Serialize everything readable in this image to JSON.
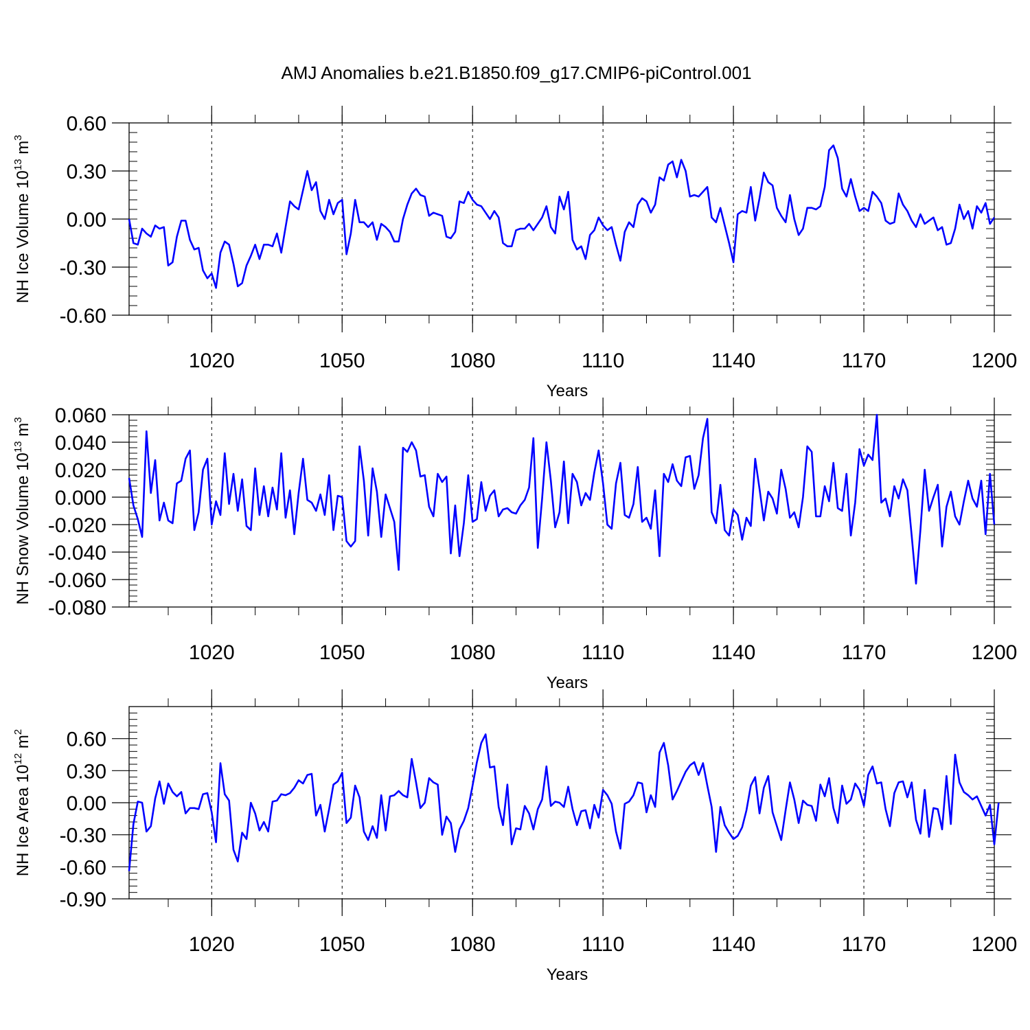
{
  "title": "AMJ Anomalies b.e21.B1850.f09_g17.CMIP6-piControl.001",
  "colors": {
    "line": "#0000ff",
    "axis": "#000000",
    "grid": "#000000"
  },
  "chart_data": [
    {
      "type": "line",
      "name": "ice-volume",
      "ylabel_main": "NH Ice Volume 10",
      "ylabel_exp": "13",
      "ylabel_unit_base": " m",
      "ylabel_unit_exp": "3",
      "xlabel": "Years",
      "xlim": [
        1001,
        1200
      ],
      "ylim": [
        -0.6,
        0.6
      ],
      "xticks": [
        1020,
        1050,
        1080,
        1110,
        1140,
        1170,
        1200
      ],
      "xtick_labels": [
        "1020",
        "1050",
        "1080",
        "1110",
        "1140",
        "1170",
        "1200"
      ],
      "yticks": [
        -0.6,
        -0.3,
        0.0,
        0.3,
        0.6
      ],
      "ytick_labels": [
        "-0.60",
        "-0.30",
        "0.00",
        "0.30",
        "0.60"
      ],
      "grid_x": [
        1020,
        1050,
        1080,
        1110,
        1140,
        1170
      ],
      "x_start": 1001,
      "values": [
        0.0,
        -0.15,
        -0.16,
        -0.06,
        -0.09,
        -0.11,
        -0.04,
        -0.06,
        -0.05,
        -0.29,
        -0.27,
        -0.11,
        -0.01,
        -0.01,
        -0.13,
        -0.19,
        -0.18,
        -0.32,
        -0.37,
        -0.34,
        -0.43,
        -0.21,
        -0.14,
        -0.16,
        -0.28,
        -0.42,
        -0.4,
        -0.29,
        -0.23,
        -0.16,
        -0.25,
        -0.16,
        -0.16,
        -0.17,
        -0.09,
        -0.21,
        -0.05,
        0.11,
        0.08,
        0.06,
        0.18,
        0.3,
        0.18,
        0.23,
        0.05,
        0.0,
        0.12,
        0.03,
        0.1,
        0.12,
        -0.22,
        -0.09,
        0.12,
        -0.02,
        -0.02,
        -0.05,
        -0.02,
        -0.13,
        -0.03,
        -0.05,
        -0.08,
        -0.14,
        -0.14,
        0.0,
        0.09,
        0.16,
        0.19,
        0.15,
        0.14,
        0.02,
        0.04,
        0.03,
        0.02,
        -0.11,
        -0.12,
        -0.08,
        0.11,
        0.1,
        0.17,
        0.12,
        0.09,
        0.08,
        0.04,
        0.0,
        0.05,
        0.01,
        -0.15,
        -0.17,
        -0.17,
        -0.07,
        -0.06,
        -0.06,
        -0.03,
        -0.07,
        -0.03,
        0.01,
        0.08,
        -0.05,
        -0.09,
        0.14,
        0.06,
        0.17,
        -0.13,
        -0.19,
        -0.17,
        -0.25,
        -0.1,
        -0.07,
        0.01,
        -0.04,
        -0.07,
        -0.05,
        -0.16,
        -0.26,
        -0.08,
        -0.02,
        -0.05,
        0.09,
        0.13,
        0.11,
        0.04,
        0.09,
        0.26,
        0.24,
        0.34,
        0.36,
        0.26,
        0.37,
        0.3,
        0.14,
        0.15,
        0.14,
        0.17,
        0.2,
        0.01,
        -0.02,
        0.07,
        -0.04,
        -0.15,
        -0.27,
        0.03,
        0.05,
        0.04,
        0.2,
        -0.01,
        0.13,
        0.29,
        0.23,
        0.21,
        0.07,
        0.02,
        -0.02,
        0.15,
        0.0,
        -0.1,
        -0.06,
        0.07,
        0.07,
        0.06,
        0.08,
        0.2,
        0.43,
        0.46,
        0.38,
        0.19,
        0.14,
        0.25,
        0.14,
        0.05,
        0.07,
        0.05,
        0.17,
        0.14,
        0.1,
        -0.01,
        -0.03,
        -0.02,
        0.16,
        0.09,
        0.05,
        -0.01,
        -0.05,
        0.03,
        -0.03,
        -0.01,
        0.01,
        -0.07,
        -0.05,
        -0.16,
        -0.15,
        -0.06,
        0.09,
        0.0,
        0.05,
        -0.06,
        0.08,
        0.04,
        0.1,
        -0.03,
        0.01
      ]
    },
    {
      "type": "line",
      "name": "snow-volume",
      "ylabel_main": "NH Snow Volume 10",
      "ylabel_exp": "13",
      "ylabel_unit_base": " m",
      "ylabel_unit_exp": "3",
      "xlabel": "Years",
      "xlim": [
        1001,
        1200
      ],
      "ylim": [
        -0.08,
        0.06
      ],
      "xticks": [
        1020,
        1050,
        1080,
        1110,
        1140,
        1170,
        1200
      ],
      "xtick_labels": [
        "1020",
        "1050",
        "1080",
        "1110",
        "1140",
        "1170",
        "1200"
      ],
      "yticks": [
        -0.08,
        -0.06,
        -0.04,
        -0.02,
        0.0,
        0.02,
        0.04,
        0.06
      ],
      "ytick_labels": [
        "-0.080",
        "-0.060",
        "-0.040",
        "-0.020",
        "0.000",
        "0.020",
        "0.040",
        "0.060"
      ],
      "grid_x": [
        1020,
        1050,
        1080,
        1110,
        1140,
        1170
      ],
      "x_start": 1001,
      "values": [
        0.014,
        -0.006,
        -0.016,
        -0.029,
        0.048,
        0.003,
        0.027,
        -0.017,
        -0.004,
        -0.017,
        -0.019,
        0.01,
        0.012,
        0.028,
        0.034,
        -0.024,
        -0.011,
        0.02,
        0.028,
        -0.02,
        -0.003,
        -0.013,
        0.032,
        -0.005,
        0.017,
        -0.01,
        0.013,
        -0.021,
        -0.024,
        0.021,
        -0.013,
        0.008,
        -0.014,
        0.007,
        -0.009,
        0.032,
        -0.015,
        0.005,
        -0.027,
        0.003,
        0.028,
        -0.002,
        -0.004,
        -0.01,
        0.002,
        -0.013,
        0.016,
        -0.024,
        0.001,
        0.0,
        -0.032,
        -0.036,
        -0.032,
        0.037,
        0.012,
        -0.028,
        0.021,
        0.004,
        -0.029,
        0.002,
        -0.008,
        -0.018,
        -0.053,
        0.036,
        0.033,
        0.04,
        0.034,
        0.015,
        0.016,
        -0.007,
        -0.014,
        0.017,
        0.011,
        0.015,
        -0.041,
        -0.006,
        -0.043,
        -0.019,
        0.016,
        -0.018,
        -0.016,
        0.011,
        -0.01,
        0.001,
        0.005,
        -0.014,
        -0.009,
        -0.008,
        -0.011,
        -0.012,
        -0.006,
        -0.002,
        0.007,
        0.043,
        -0.037,
        -0.001,
        0.04,
        0.012,
        -0.022,
        -0.011,
        0.026,
        -0.019,
        0.017,
        0.011,
        -0.006,
        0.003,
        -0.002,
        0.018,
        0.034,
        0.01,
        -0.02,
        -0.023,
        0.01,
        0.025,
        -0.013,
        -0.015,
        -0.005,
        0.022,
        -0.018,
        -0.015,
        -0.023,
        0.005,
        -0.043,
        0.017,
        0.011,
        0.024,
        0.012,
        0.008,
        0.029,
        0.03,
        0.006,
        0.016,
        0.043,
        0.057,
        -0.011,
        -0.019,
        0.009,
        -0.024,
        -0.028,
        -0.009,
        -0.013,
        -0.031,
        -0.015,
        -0.021,
        0.028,
        0.006,
        -0.017,
        0.004,
        -0.001,
        -0.012,
        0.02,
        0.006,
        -0.015,
        -0.011,
        -0.022,
        0.0,
        0.037,
        0.033,
        -0.014,
        -0.014,
        0.008,
        -0.003,
        0.025,
        -0.008,
        -0.01,
        0.017,
        -0.028,
        -0.004,
        0.035,
        0.023,
        0.031,
        0.027,
        0.06,
        -0.004,
        -0.001,
        -0.014,
        0.008,
        -0.001,
        0.013,
        0.005,
        -0.028,
        -0.063,
        -0.024,
        0.02,
        -0.01,
        0.0,
        0.009,
        -0.036,
        -0.007,
        0.004,
        -0.014,
        -0.02,
        -0.003,
        0.012,
        -0.001,
        -0.007,
        0.012,
        -0.027,
        0.017,
        -0.02
      ]
    },
    {
      "type": "line",
      "name": "ice-area",
      "ylabel_main": "NH Ice Area 10",
      "ylabel_exp": "12",
      "ylabel_unit_base": " m",
      "ylabel_unit_exp": "2",
      "xlabel": "Years",
      "xlim": [
        1001,
        1200
      ],
      "ylim": [
        -0.9,
        0.9
      ],
      "xticks": [
        1020,
        1050,
        1080,
        1110,
        1140,
        1170,
        1200
      ],
      "xtick_labels": [
        "1020",
        "1050",
        "1080",
        "1110",
        "1140",
        "1170",
        "1200"
      ],
      "yticks": [
        -0.9,
        -0.6,
        -0.3,
        0.0,
        0.3,
        0.6
      ],
      "ytick_labels": [
        "-0.90",
        "-0.60",
        "-0.30",
        "0.00",
        "0.30",
        "0.60"
      ],
      "grid_x": [
        1020,
        1050,
        1080,
        1110,
        1140,
        1170
      ],
      "x_start": 1001,
      "values": [
        -0.64,
        -0.2,
        0.01,
        0.0,
        -0.27,
        -0.22,
        0.04,
        0.2,
        -0.01,
        0.18,
        0.1,
        0.06,
        0.1,
        -0.1,
        -0.05,
        -0.05,
        -0.06,
        0.08,
        0.09,
        -0.09,
        -0.37,
        0.37,
        0.08,
        0.02,
        -0.44,
        -0.55,
        -0.28,
        -0.34,
        0.0,
        -0.1,
        -0.26,
        -0.18,
        -0.27,
        0.01,
        0.02,
        0.08,
        0.07,
        0.09,
        0.14,
        0.21,
        0.18,
        0.26,
        0.27,
        -0.12,
        -0.02,
        -0.27,
        -0.06,
        0.17,
        0.2,
        0.28,
        -0.19,
        -0.14,
        0.16,
        0.05,
        -0.27,
        -0.35,
        -0.22,
        -0.33,
        0.07,
        -0.26,
        0.06,
        0.07,
        0.11,
        0.07,
        0.05,
        0.41,
        0.19,
        -0.05,
        0.0,
        0.23,
        0.19,
        0.17,
        -0.3,
        -0.13,
        -0.19,
        -0.46,
        -0.25,
        -0.17,
        -0.05,
        0.16,
        0.38,
        0.56,
        0.64,
        0.33,
        0.34,
        -0.04,
        -0.21,
        0.17,
        -0.39,
        -0.24,
        -0.25,
        -0.03,
        -0.1,
        -0.25,
        -0.06,
        0.03,
        0.34,
        -0.03,
        0.01,
        0.0,
        -0.04,
        0.15,
        -0.06,
        -0.21,
        -0.08,
        -0.07,
        -0.24,
        -0.02,
        -0.14,
        0.12,
        0.07,
        -0.01,
        -0.27,
        -0.43,
        -0.01,
        0.01,
        0.07,
        0.19,
        0.18,
        -0.09,
        0.07,
        -0.04,
        0.47,
        0.56,
        0.35,
        0.03,
        0.11,
        0.2,
        0.29,
        0.35,
        0.38,
        0.26,
        0.37,
        0.16,
        -0.04,
        -0.46,
        -0.04,
        -0.21,
        -0.28,
        -0.34,
        -0.31,
        -0.23,
        -0.07,
        0.16,
        0.24,
        -0.1,
        0.14,
        0.25,
        -0.09,
        -0.22,
        -0.35,
        -0.07,
        0.19,
        0.03,
        -0.19,
        0.02,
        -0.02,
        -0.03,
        -0.17,
        0.17,
        0.06,
        0.23,
        -0.05,
        -0.19,
        0.16,
        -0.01,
        0.03,
        0.18,
        0.12,
        -0.03,
        0.26,
        0.34,
        0.18,
        0.19,
        -0.06,
        -0.22,
        0.09,
        0.19,
        0.2,
        0.05,
        0.19,
        -0.16,
        -0.29,
        0.12,
        -0.32,
        -0.05,
        -0.06,
        -0.25,
        0.25,
        -0.2,
        0.45,
        0.19,
        0.1,
        0.07,
        0.03,
        0.06,
        -0.03,
        -0.12,
        -0.02,
        -0.39,
        0.0
      ]
    }
  ]
}
